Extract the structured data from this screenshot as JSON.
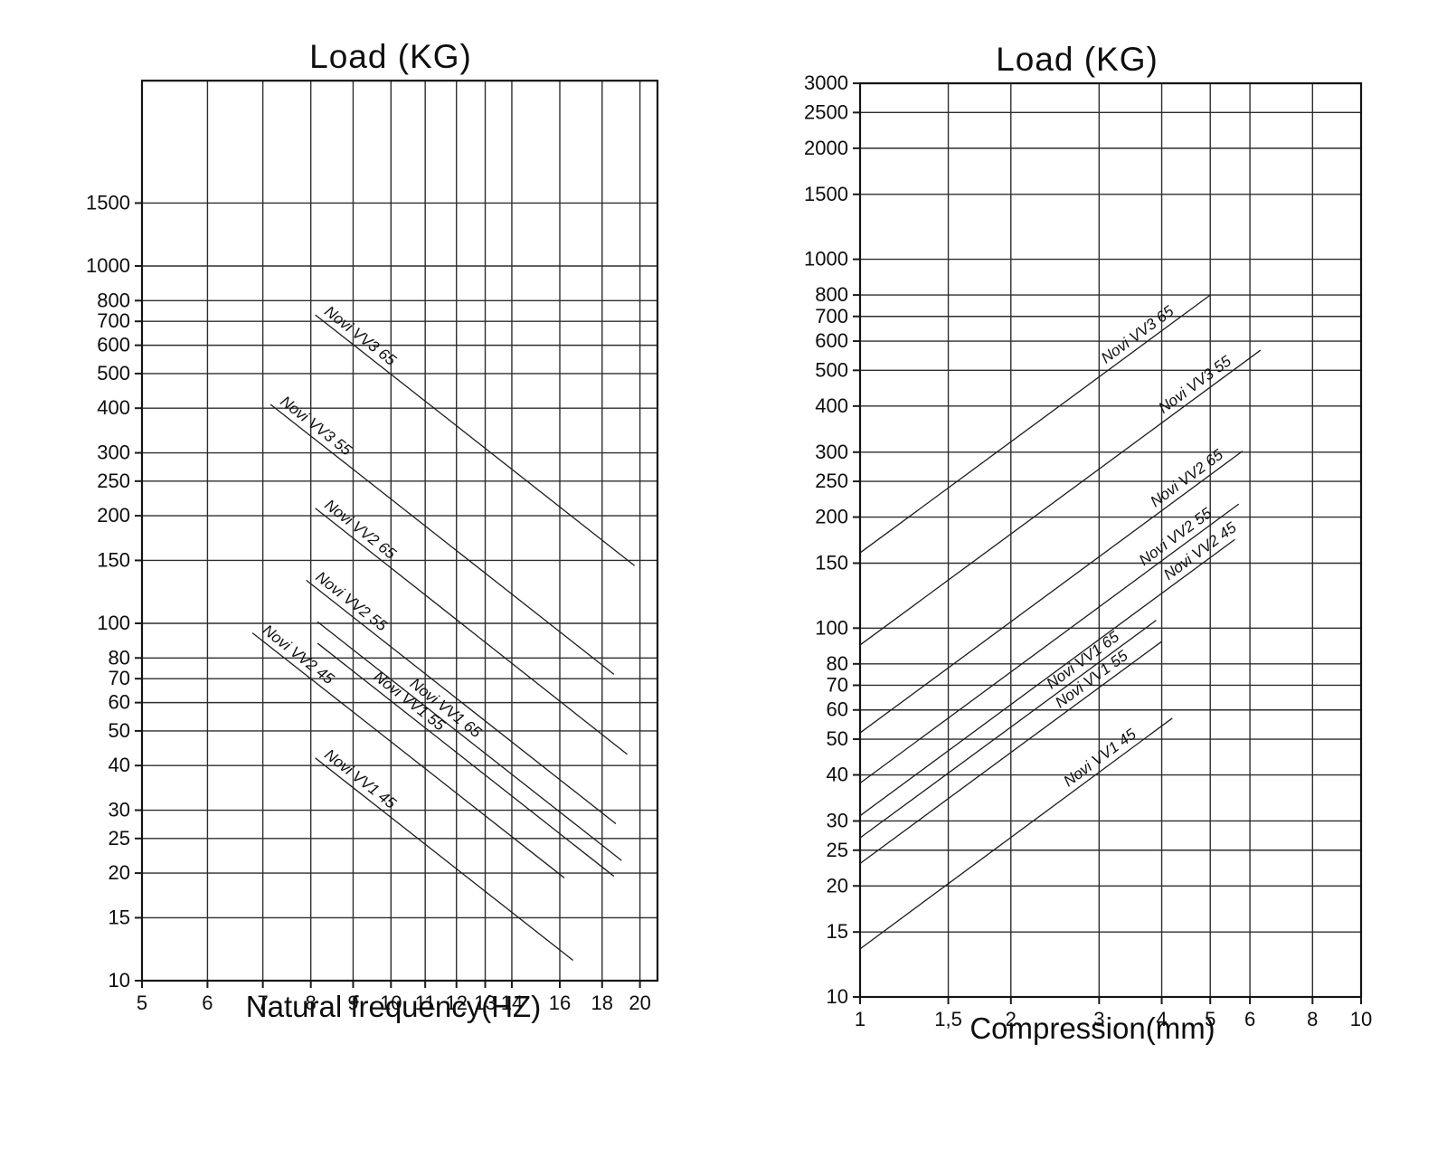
{
  "page": {
    "background": "#ffffff",
    "ink": "#1a1a1a"
  },
  "chart_data": [
    {
      "type": "line",
      "title": "Load (KG)",
      "xlabel": "Natural frequency(HZ)",
      "ylabel": "",
      "grid": true,
      "legend": "labels-on-lines",
      "x_axis": {
        "scale": "log",
        "range": [
          5,
          21
        ],
        "ticks": [
          5,
          6,
          7,
          8,
          9,
          10,
          11,
          12,
          13,
          14,
          16,
          18,
          20
        ],
        "tick_labels": [
          "5",
          "6",
          "7",
          "8",
          "9",
          "10",
          "11",
          "12",
          "13",
          "14",
          "16",
          "18",
          "20"
        ]
      },
      "y_axis": {
        "scale": "log",
        "range": [
          10,
          3300
        ],
        "ticks": [
          10,
          15,
          20,
          25,
          30,
          40,
          50,
          60,
          70,
          80,
          100,
          150,
          200,
          250,
          300,
          400,
          500,
          600,
          700,
          800,
          1000,
          1500
        ],
        "tick_labels": [
          "10",
          "15",
          "20",
          "25",
          "30",
          "40",
          "50",
          "60",
          "70",
          "80",
          "100",
          "150",
          "200",
          "250",
          "300",
          "400",
          "500",
          "600",
          "700",
          "800",
          "1000",
          "1500"
        ]
      },
      "series": [
        {
          "name": "Novi VV3 65",
          "points": [
            [
              8.1,
              730
            ],
            [
              19.7,
              145
            ]
          ],
          "label_at_x": 8.2
        },
        {
          "name": "Novi VV3 55",
          "points": [
            [
              7.15,
              410
            ],
            [
              18.6,
              72
            ]
          ],
          "label_at_x": 7.25
        },
        {
          "name": "Novi VV2 65",
          "points": [
            [
              8.1,
              210
            ],
            [
              19.3,
              43
            ]
          ],
          "label_at_x": 8.2
        },
        {
          "name": "Novi VV2 55",
          "points": [
            [
              7.9,
              132
            ],
            [
              18.7,
              27.5
            ]
          ],
          "label_at_x": 8.0
        },
        {
          "name": "Novi VV2 45",
          "points": [
            [
              6.8,
              94
            ],
            [
              16.2,
              19.4
            ]
          ],
          "label_at_x": 6.9
        },
        {
          "name": "Novi VV1 65",
          "points": [
            [
              8.15,
              101
            ],
            [
              19.0,
              21.7
            ]
          ],
          "label_at_x": 10.4
        },
        {
          "name": "Novi VV1 55",
          "points": [
            [
              8.15,
              88
            ],
            [
              18.6,
              19.6
            ]
          ],
          "label_at_x": 9.4
        },
        {
          "name": "Novi VV1 45",
          "points": [
            [
              8.1,
              42
            ],
            [
              16.6,
              11.4
            ]
          ],
          "label_at_x": 8.2
        }
      ]
    },
    {
      "type": "line",
      "title": "Load (KG)",
      "xlabel": "Compression(mm)",
      "ylabel": "",
      "grid": true,
      "legend": "labels-on-lines",
      "x_axis": {
        "scale": "log",
        "range": [
          1,
          10
        ],
        "ticks": [
          1,
          1.5,
          2,
          3,
          4,
          5,
          6,
          8,
          10
        ],
        "tick_labels": [
          "1",
          "1,5",
          "2",
          "3",
          "4",
          "5",
          "6",
          "8",
          "10"
        ]
      },
      "y_axis": {
        "scale": "log",
        "range": [
          10,
          3000
        ],
        "ticks": [
          10,
          15,
          20,
          25,
          30,
          40,
          50,
          60,
          70,
          80,
          100,
          150,
          200,
          250,
          300,
          400,
          500,
          600,
          700,
          800,
          1000,
          1500,
          2000,
          2500,
          3000
        ],
        "tick_labels": [
          "10",
          "15",
          "20",
          "25",
          "30",
          "40",
          "50",
          "60",
          "70",
          "80",
          "100",
          "150",
          "200",
          "250",
          "300",
          "400",
          "500",
          "600",
          "700",
          "800",
          "1000",
          "1500",
          "2000",
          "2500",
          "3000"
        ]
      },
      "series": [
        {
          "name": "Novi VV3 65",
          "points": [
            [
              1,
              160
            ],
            [
              5.0,
              800
            ]
          ],
          "label_at_x": 3.15
        },
        {
          "name": "Novi VV3 55",
          "points": [
            [
              1,
              90
            ],
            [
              6.3,
              567
            ]
          ],
          "label_at_x": 4.1
        },
        {
          "name": "Novi VV2 65",
          "points": [
            [
              1,
              52
            ],
            [
              5.8,
              302
            ]
          ],
          "label_at_x": 3.95
        },
        {
          "name": "Novi VV2 55",
          "points": [
            [
              1,
              38
            ],
            [
              5.7,
              217
            ]
          ],
          "label_at_x": 3.75
        },
        {
          "name": "Novi VV2 45",
          "points": [
            [
              1,
              31
            ],
            [
              5.6,
              174
            ]
          ],
          "label_at_x": 4.2
        },
        {
          "name": "Novi VV1 65",
          "points": [
            [
              1,
              27
            ],
            [
              3.9,
              105
            ]
          ],
          "label_at_x": 2.45
        },
        {
          "name": "Novi VV1 55",
          "points": [
            [
              1,
              23
            ],
            [
              4.0,
              92
            ]
          ],
          "label_at_x": 2.55
        },
        {
          "name": "Novi VV1 45",
          "points": [
            [
              1,
              13.5
            ],
            [
              4.2,
              57
            ]
          ],
          "label_at_x": 2.65
        }
      ]
    }
  ]
}
